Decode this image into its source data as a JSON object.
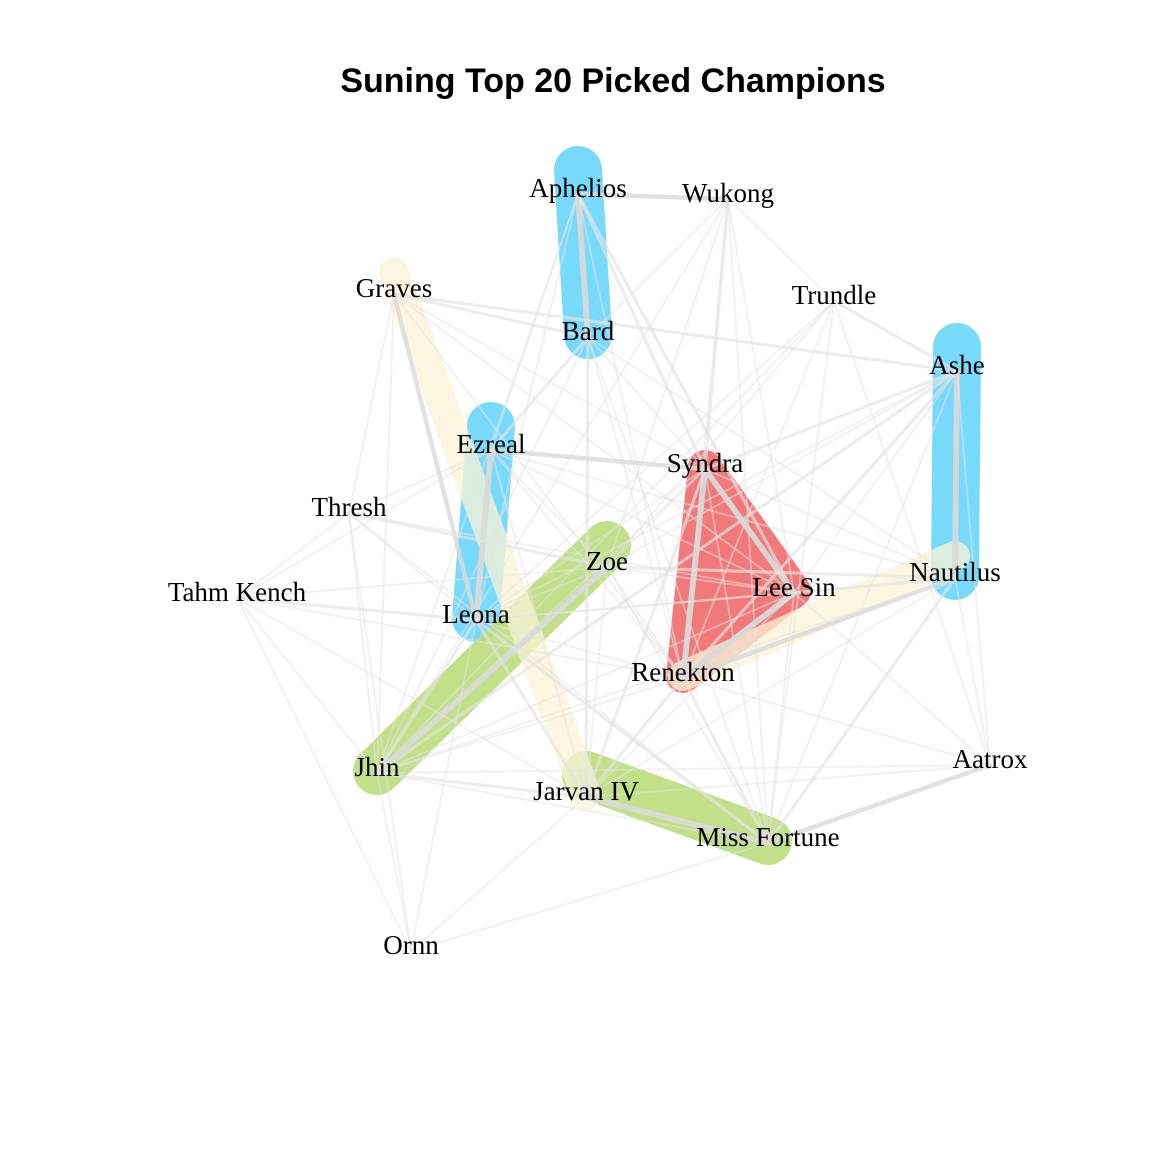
{
  "title": "Suning Top 20 Picked Champions",
  "nodes": [
    {
      "id": "aphelios",
      "label": "Aphelios"
    },
    {
      "id": "wukong",
      "label": "Wukong"
    },
    {
      "id": "graves",
      "label": "Graves"
    },
    {
      "id": "trundle",
      "label": "Trundle"
    },
    {
      "id": "bard",
      "label": "Bard"
    },
    {
      "id": "ashe",
      "label": "Ashe"
    },
    {
      "id": "ezreal",
      "label": "Ezreal"
    },
    {
      "id": "syndra",
      "label": "Syndra"
    },
    {
      "id": "thresh",
      "label": "Thresh"
    },
    {
      "id": "zoe",
      "label": "Zoe"
    },
    {
      "id": "nautilus",
      "label": "Nautilus"
    },
    {
      "id": "tahm_kench",
      "label": "Tahm Kench"
    },
    {
      "id": "lee_sin",
      "label": "Lee Sin"
    },
    {
      "id": "leona",
      "label": "Leona"
    },
    {
      "id": "renekton",
      "label": "Renekton"
    },
    {
      "id": "jhin",
      "label": "Jhin"
    },
    {
      "id": "aatrox",
      "label": "Aatrox"
    },
    {
      "id": "jarvan_iv",
      "label": "Jarvan IV"
    },
    {
      "id": "miss_fortune",
      "label": "Miss Fortune"
    },
    {
      "id": "ornn",
      "label": "Ornn"
    }
  ],
  "groups": [
    {
      "name": "blue-aphelios-bard",
      "color": "#66d6fb",
      "members": [
        "aphelios",
        "bard"
      ]
    },
    {
      "name": "blue-ezreal-leona",
      "color": "#66d6fb",
      "members": [
        "ezreal",
        "leona"
      ]
    },
    {
      "name": "blue-ashe-nautilus",
      "color": "#66d6fb",
      "members": [
        "ashe",
        "nautilus"
      ]
    },
    {
      "name": "red-syndra-leesin-renekton",
      "color": "#f06767",
      "members": [
        "syndra",
        "lee_sin",
        "renekton"
      ]
    },
    {
      "name": "green-zoe-jhin",
      "color": "#b9dc78",
      "members": [
        "zoe",
        "jhin"
      ]
    },
    {
      "name": "green-jarvan-missfortune",
      "color": "#b9dc78",
      "members": [
        "jarvan_iv",
        "miss_fortune"
      ]
    },
    {
      "name": "cream-graves-jarvan",
      "color": "#fbf4d6",
      "members": [
        "graves",
        "jarvan_iv"
      ]
    },
    {
      "name": "cream-nautilus-renekton",
      "color": "#fbf4d6",
      "members": [
        "nautilus",
        "renekton"
      ]
    }
  ],
  "edges": [
    {
      "a": "aphelios",
      "b": "wukong",
      "w": 3
    },
    {
      "a": "aphelios",
      "b": "bard",
      "w": 4
    },
    {
      "a": "aphelios",
      "b": "syndra",
      "w": 2
    },
    {
      "a": "aphelios",
      "b": "lee_sin",
      "w": 2
    },
    {
      "a": "aphelios",
      "b": "leona",
      "w": 1
    },
    {
      "a": "aphelios",
      "b": "renekton",
      "w": 1
    },
    {
      "a": "aphelios",
      "b": "ezreal",
      "w": 1
    },
    {
      "a": "aphelios",
      "b": "jhin",
      "w": 1
    },
    {
      "a": "wukong",
      "b": "syndra",
      "w": 2
    },
    {
      "a": "wukong",
      "b": "bard",
      "w": 1
    },
    {
      "a": "wukong",
      "b": "trundle",
      "w": 1
    },
    {
      "a": "wukong",
      "b": "lee_sin",
      "w": 1
    },
    {
      "a": "wukong",
      "b": "zoe",
      "w": 1
    },
    {
      "a": "wukong",
      "b": "miss_fortune",
      "w": 1
    },
    {
      "a": "wukong",
      "b": "jhin",
      "w": 1
    },
    {
      "a": "wukong",
      "b": "renekton",
      "w": 1
    },
    {
      "a": "graves",
      "b": "bard",
      "w": 2
    },
    {
      "a": "graves",
      "b": "ashe",
      "w": 2
    },
    {
      "a": "graves",
      "b": "leona",
      "w": 3
    },
    {
      "a": "graves",
      "b": "thresh",
      "w": 1
    },
    {
      "a": "graves",
      "b": "lee_sin",
      "w": 1
    },
    {
      "a": "graves",
      "b": "jhin",
      "w": 1
    },
    {
      "a": "graves",
      "b": "renekton",
      "w": 1
    },
    {
      "a": "graves",
      "b": "syndra",
      "w": 1
    },
    {
      "a": "trundle",
      "b": "ashe",
      "w": 2
    },
    {
      "a": "trundle",
      "b": "leona",
      "w": 1
    },
    {
      "a": "trundle",
      "b": "miss_fortune",
      "w": 1
    },
    {
      "a": "trundle",
      "b": "jhin",
      "w": 1
    },
    {
      "a": "trundle",
      "b": "zoe",
      "w": 1
    },
    {
      "a": "trundle",
      "b": "aatrox",
      "w": 1
    },
    {
      "a": "trundle",
      "b": "renekton",
      "w": 1
    },
    {
      "a": "bard",
      "b": "ezreal",
      "w": 2
    },
    {
      "a": "bard",
      "b": "jarvan_iv",
      "w": 2
    },
    {
      "a": "bard",
      "b": "nautilus",
      "w": 1
    },
    {
      "a": "bard",
      "b": "syndra",
      "w": 1
    },
    {
      "a": "bard",
      "b": "renekton",
      "w": 1
    },
    {
      "a": "bard",
      "b": "miss_fortune",
      "w": 1
    },
    {
      "a": "bard",
      "b": "jhin",
      "w": 1
    },
    {
      "a": "ashe",
      "b": "nautilus",
      "w": 4
    },
    {
      "a": "ashe",
      "b": "renekton",
      "w": 2
    },
    {
      "a": "ashe",
      "b": "syndra",
      "w": 2
    },
    {
      "a": "ashe",
      "b": "jhin",
      "w": 2
    },
    {
      "a": "ashe",
      "b": "lee_sin",
      "w": 1
    },
    {
      "a": "ashe",
      "b": "zoe",
      "w": 1
    },
    {
      "a": "ashe",
      "b": "miss_fortune",
      "w": 1
    },
    {
      "a": "ashe",
      "b": "leona",
      "w": 1
    },
    {
      "a": "ezreal",
      "b": "leona",
      "w": 4
    },
    {
      "a": "ezreal",
      "b": "syndra",
      "w": 3
    },
    {
      "a": "ezreal",
      "b": "lee_sin",
      "w": 1
    },
    {
      "a": "ezreal",
      "b": "jarvan_iv",
      "w": 1
    },
    {
      "a": "ezreal",
      "b": "nautilus",
      "w": 1
    },
    {
      "a": "ezreal",
      "b": "renekton",
      "w": 1
    },
    {
      "a": "ezreal",
      "b": "zoe",
      "w": 1
    },
    {
      "a": "ezreal",
      "b": "tahm_kench",
      "w": 1
    },
    {
      "a": "ezreal",
      "b": "thresh",
      "w": 1
    },
    {
      "a": "syndra",
      "b": "lee_sin",
      "w": 4
    },
    {
      "a": "syndra",
      "b": "renekton",
      "w": 4
    },
    {
      "a": "syndra",
      "b": "jarvan_iv",
      "w": 2
    },
    {
      "a": "syndra",
      "b": "miss_fortune",
      "w": 1
    },
    {
      "a": "syndra",
      "b": "nautilus",
      "w": 1
    },
    {
      "a": "syndra",
      "b": "zoe",
      "w": 1
    },
    {
      "a": "syndra",
      "b": "leona",
      "w": 1
    },
    {
      "a": "syndra",
      "b": "jhin",
      "w": 1
    },
    {
      "a": "thresh",
      "b": "zoe",
      "w": 2
    },
    {
      "a": "thresh",
      "b": "jhin",
      "w": 1
    },
    {
      "a": "thresh",
      "b": "leona",
      "w": 1
    },
    {
      "a": "thresh",
      "b": "ornn",
      "w": 1
    },
    {
      "a": "thresh",
      "b": "lee_sin",
      "w": 1
    },
    {
      "a": "thresh",
      "b": "miss_fortune",
      "w": 1
    },
    {
      "a": "zoe",
      "b": "jhin",
      "w": 4
    },
    {
      "a": "zoe",
      "b": "nautilus",
      "w": 2
    },
    {
      "a": "zoe",
      "b": "lee_sin",
      "w": 1
    },
    {
      "a": "zoe",
      "b": "jarvan_iv",
      "w": 1
    },
    {
      "a": "zoe",
      "b": "renekton",
      "w": 1
    },
    {
      "a": "zoe",
      "b": "leona",
      "w": 1
    },
    {
      "a": "zoe",
      "b": "miss_fortune",
      "w": 1
    },
    {
      "a": "nautilus",
      "b": "renekton",
      "w": 3
    },
    {
      "a": "nautilus",
      "b": "lee_sin",
      "w": 2
    },
    {
      "a": "nautilus",
      "b": "miss_fortune",
      "w": 2
    },
    {
      "a": "nautilus",
      "b": "jarvan_iv",
      "w": 1
    },
    {
      "a": "nautilus",
      "b": "aatrox",
      "w": 1
    },
    {
      "a": "nautilus",
      "b": "jhin",
      "w": 1
    },
    {
      "a": "nautilus",
      "b": "leona",
      "w": 1
    },
    {
      "a": "tahm_kench",
      "b": "leona",
      "w": 2
    },
    {
      "a": "tahm_kench",
      "b": "jhin",
      "w": 1
    },
    {
      "a": "tahm_kench",
      "b": "ornn",
      "w": 1
    },
    {
      "a": "tahm_kench",
      "b": "jarvan_iv",
      "w": 1
    },
    {
      "a": "tahm_kench",
      "b": "thresh",
      "w": 1
    },
    {
      "a": "tahm_kench",
      "b": "zoe",
      "w": 1
    },
    {
      "a": "tahm_kench",
      "b": "renekton",
      "w": 1
    },
    {
      "a": "lee_sin",
      "b": "renekton",
      "w": 4
    },
    {
      "a": "lee_sin",
      "b": "jarvan_iv",
      "w": 1
    },
    {
      "a": "lee_sin",
      "b": "miss_fortune",
      "w": 1
    },
    {
      "a": "lee_sin",
      "b": "aatrox",
      "w": 1
    },
    {
      "a": "lee_sin",
      "b": "leona",
      "w": 1
    },
    {
      "a": "lee_sin",
      "b": "jhin",
      "w": 1
    },
    {
      "a": "leona",
      "b": "jarvan_iv",
      "w": 2
    },
    {
      "a": "leona",
      "b": "jhin",
      "w": 2
    },
    {
      "a": "leona",
      "b": "miss_fortune",
      "w": 2
    },
    {
      "a": "leona",
      "b": "renekton",
      "w": 1
    },
    {
      "a": "leona",
      "b": "ornn",
      "w": 1
    },
    {
      "a": "renekton",
      "b": "jarvan_iv",
      "w": 2
    },
    {
      "a": "renekton",
      "b": "miss_fortune",
      "w": 2
    },
    {
      "a": "renekton",
      "b": "jhin",
      "w": 1
    },
    {
      "a": "renekton",
      "b": "aatrox",
      "w": 1
    },
    {
      "a": "jhin",
      "b": "jarvan_iv",
      "w": 2
    },
    {
      "a": "jhin",
      "b": "ornn",
      "w": 1
    },
    {
      "a": "jhin",
      "b": "miss_fortune",
      "w": 1
    },
    {
      "a": "jhin",
      "b": "aatrox",
      "w": 1
    },
    {
      "a": "aatrox",
      "b": "miss_fortune",
      "w": 3
    },
    {
      "a": "aatrox",
      "b": "ashe",
      "w": 1
    },
    {
      "a": "aatrox",
      "b": "jarvan_iv",
      "w": 1
    },
    {
      "a": "jarvan_iv",
      "b": "miss_fortune",
      "w": 4
    },
    {
      "a": "jarvan_iv",
      "b": "ornn",
      "w": 1
    },
    {
      "a": "miss_fortune",
      "b": "ornn",
      "w": 1
    }
  ]
}
